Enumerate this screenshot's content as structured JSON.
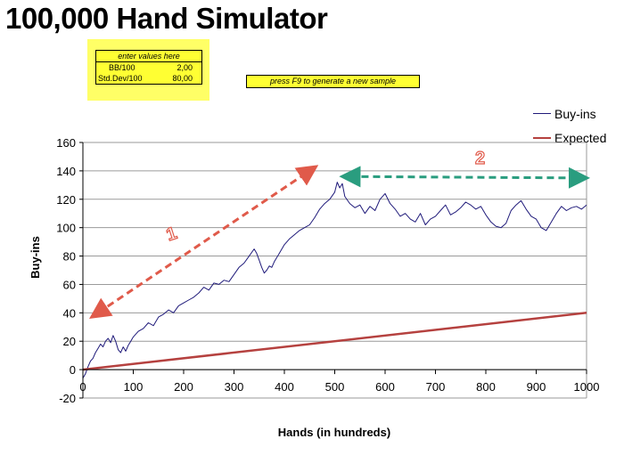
{
  "app": {
    "title": "100,000 Hand Simulator"
  },
  "inputs": {
    "header": "enter values here",
    "rows": [
      {
        "label": "BB/100",
        "value": "2,00"
      },
      {
        "label": "Std.Dev/100",
        "value": "80,00"
      }
    ]
  },
  "button": {
    "label": "press F9 to generate a new sample"
  },
  "colors": {
    "buyins": "#1f1a7a",
    "expected": "#b5413f",
    "arrow1": "#e05a4a",
    "arrow2": "#2a9d7f",
    "panel": "#ffff66",
    "cell": "#ffff33"
  },
  "chart_data": {
    "type": "line",
    "xlabel": "Hands (in hundreds)",
    "ylabel": "Buy-ins",
    "xlim": [
      0,
      1000
    ],
    "ylim": [
      -20,
      160
    ],
    "xticks": [
      0,
      100,
      200,
      300,
      400,
      500,
      600,
      700,
      800,
      900,
      1000
    ],
    "yticks": [
      -20,
      0,
      20,
      40,
      60,
      80,
      100,
      120,
      140,
      160
    ],
    "grid": "horizontal",
    "legend_position": "top-right",
    "series": [
      {
        "name": "Buy-ins",
        "points": [
          [
            0,
            -6
          ],
          [
            5,
            -3
          ],
          [
            10,
            2
          ],
          [
            15,
            6
          ],
          [
            20,
            8
          ],
          [
            25,
            12
          ],
          [
            30,
            15
          ],
          [
            35,
            18
          ],
          [
            40,
            16
          ],
          [
            45,
            20
          ],
          [
            50,
            22
          ],
          [
            55,
            19
          ],
          [
            60,
            24
          ],
          [
            65,
            20
          ],
          [
            70,
            14
          ],
          [
            75,
            12
          ],
          [
            80,
            16
          ],
          [
            85,
            13
          ],
          [
            90,
            17
          ],
          [
            95,
            20
          ],
          [
            100,
            23
          ],
          [
            110,
            27
          ],
          [
            120,
            29
          ],
          [
            130,
            33
          ],
          [
            140,
            31
          ],
          [
            150,
            37
          ],
          [
            160,
            39
          ],
          [
            170,
            42
          ],
          [
            180,
            40
          ],
          [
            190,
            45
          ],
          [
            200,
            47
          ],
          [
            210,
            49
          ],
          [
            220,
            51
          ],
          [
            230,
            54
          ],
          [
            240,
            58
          ],
          [
            250,
            56
          ],
          [
            260,
            61
          ],
          [
            270,
            60
          ],
          [
            280,
            63
          ],
          [
            290,
            62
          ],
          [
            300,
            67
          ],
          [
            310,
            72
          ],
          [
            320,
            75
          ],
          [
            330,
            80
          ],
          [
            340,
            85
          ],
          [
            345,
            82
          ],
          [
            350,
            77
          ],
          [
            355,
            72
          ],
          [
            360,
            68
          ],
          [
            365,
            70
          ],
          [
            370,
            73
          ],
          [
            375,
            72
          ],
          [
            380,
            76
          ],
          [
            390,
            82
          ],
          [
            400,
            88
          ],
          [
            410,
            92
          ],
          [
            420,
            95
          ],
          [
            430,
            98
          ],
          [
            440,
            100
          ],
          [
            450,
            102
          ],
          [
            460,
            107
          ],
          [
            470,
            113
          ],
          [
            480,
            117
          ],
          [
            490,
            120
          ],
          [
            500,
            125
          ],
          [
            505,
            132
          ],
          [
            510,
            128
          ],
          [
            515,
            131
          ],
          [
            520,
            122
          ],
          [
            530,
            117
          ],
          [
            540,
            114
          ],
          [
            550,
            116
          ],
          [
            560,
            110
          ],
          [
            570,
            115
          ],
          [
            580,
            112
          ],
          [
            590,
            120
          ],
          [
            600,
            124
          ],
          [
            610,
            117
          ],
          [
            620,
            113
          ],
          [
            630,
            108
          ],
          [
            640,
            110
          ],
          [
            650,
            106
          ],
          [
            660,
            104
          ],
          [
            670,
            110
          ],
          [
            680,
            102
          ],
          [
            690,
            106
          ],
          [
            700,
            108
          ],
          [
            710,
            112
          ],
          [
            720,
            116
          ],
          [
            730,
            109
          ],
          [
            740,
            111
          ],
          [
            750,
            114
          ],
          [
            760,
            118
          ],
          [
            770,
            116
          ],
          [
            780,
            113
          ],
          [
            790,
            115
          ],
          [
            800,
            109
          ],
          [
            810,
            104
          ],
          [
            820,
            101
          ],
          [
            830,
            100
          ],
          [
            840,
            103
          ],
          [
            850,
            112
          ],
          [
            860,
            116
          ],
          [
            870,
            119
          ],
          [
            880,
            113
          ],
          [
            890,
            108
          ],
          [
            900,
            106
          ],
          [
            910,
            100
          ],
          [
            920,
            98
          ],
          [
            930,
            104
          ],
          [
            940,
            110
          ],
          [
            950,
            115
          ],
          [
            960,
            112
          ],
          [
            970,
            114
          ],
          [
            980,
            115
          ],
          [
            990,
            113
          ],
          [
            1000,
            116
          ]
        ]
      },
      {
        "name": "Expected",
        "points": [
          [
            0,
            0
          ],
          [
            1000,
            40
          ]
        ]
      }
    ],
    "annotations": [
      {
        "label": "1",
        "from": [
          30,
          40
        ],
        "to": [
          450,
          140
        ]
      },
      {
        "label": "2",
        "from": [
          530,
          136
        ],
        "to": [
          1000,
          135
        ]
      }
    ]
  }
}
